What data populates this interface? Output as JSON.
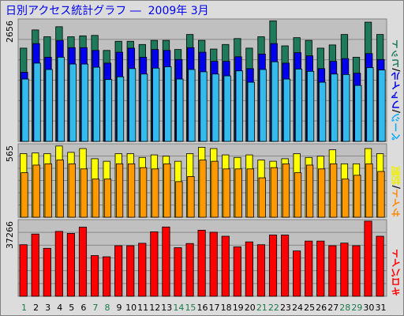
{
  "title": "日別アクセス統計グラフ ―  2009年 3月",
  "chart_data": [
    {
      "type": "bar",
      "panel": "page-file-hit",
      "categories": [
        "1",
        "2",
        "3",
        "4",
        "5",
        "6",
        "7",
        "8",
        "9",
        "10",
        "11",
        "12",
        "13",
        "14",
        "15",
        "16",
        "17",
        "18",
        "19",
        "20",
        "21",
        "22",
        "23",
        "24",
        "25",
        "26",
        "27",
        "28",
        "29",
        "30",
        "31"
      ],
      "ymax_label": "2656",
      "ylim": [
        0,
        2656
      ],
      "grid": true,
      "legend": [
        {
          "text": "ページ",
          "color": "#00aaff"
        },
        {
          "text": "/",
          "color": "#000000"
        },
        {
          "text": "ファイル",
          "color": "#0000ee"
        },
        {
          "text": "/",
          "color": "#000000"
        },
        {
          "text": "ヒット",
          "color": "#1a7a5a"
        }
      ],
      "legend_position": "right",
      "series": [
        {
          "name": "ヒット",
          "color": "#1e7a5a",
          "values": [
            2050,
            2450,
            2300,
            2520,
            2300,
            2320,
            2330,
            2000,
            2200,
            2200,
            2130,
            2220,
            2220,
            2020,
            2350,
            2220,
            2030,
            2130,
            2260,
            2050,
            2300,
            2650,
            2100,
            2280,
            2220,
            2050,
            2120,
            2350,
            1850,
            2620,
            2350
          ]
        },
        {
          "name": "ファイル",
          "color": "#0000ee",
          "values": [
            1520,
            2150,
            1850,
            2220,
            2060,
            2060,
            2000,
            1720,
            1960,
            2050,
            1850,
            2020,
            2000,
            1800,
            2060,
            1960,
            1760,
            1760,
            1860,
            1600,
            1920,
            2150,
            1720,
            1950,
            1880,
            1600,
            1760,
            1820,
            1500,
            1930,
            1800
          ]
        },
        {
          "name": "ページ",
          "color": "#33bbee",
          "values": [
            1370,
            1720,
            1580,
            1850,
            1700,
            1700,
            1630,
            1360,
            1420,
            1600,
            1480,
            1610,
            1640,
            1370,
            1580,
            1530,
            1480,
            1440,
            1550,
            1300,
            1580,
            1750,
            1370,
            1590,
            1540,
            1300,
            1480,
            1470,
            1230,
            1620,
            1570
          ]
        }
      ]
    },
    {
      "type": "bar",
      "panel": "site",
      "categories": [
        "1",
        "2",
        "3",
        "4",
        "5",
        "6",
        "7",
        "8",
        "9",
        "10",
        "11",
        "12",
        "13",
        "14",
        "15",
        "16",
        "17",
        "18",
        "19",
        "20",
        "21",
        "22",
        "23",
        "24",
        "25",
        "26",
        "27",
        "28",
        "29",
        "30",
        "31"
      ],
      "ymax_label": "565",
      "ylim": [
        0,
        565
      ],
      "grid": true,
      "legend": [
        {
          "text": "サイト",
          "color": "#ff8800"
        },
        {
          "text": "/",
          "color": "#000000"
        },
        {
          "text": "訪問",
          "color": "#eeee00"
        }
      ],
      "legend_position": "right",
      "series": [
        {
          "name": "訪問",
          "color": "#ffff00",
          "values": [
            500,
            505,
            500,
            560,
            510,
            540,
            460,
            440,
            500,
            500,
            470,
            490,
            480,
            440,
            500,
            550,
            540,
            490,
            470,
            490,
            450,
            440,
            460,
            500,
            470,
            480,
            530,
            420,
            420,
            540,
            500
          ]
        },
        {
          "name": "サイト",
          "color": "#ff9900",
          "values": [
            350,
            410,
            420,
            450,
            420,
            380,
            300,
            300,
            420,
            420,
            390,
            380,
            420,
            280,
            320,
            450,
            440,
            380,
            380,
            380,
            310,
            390,
            420,
            350,
            410,
            380,
            420,
            300,
            330,
            420,
            360
          ]
        }
      ]
    },
    {
      "type": "bar",
      "panel": "kilobyte",
      "categories": [
        "1",
        "2",
        "3",
        "4",
        "5",
        "6",
        "7",
        "8",
        "9",
        "10",
        "11",
        "12",
        "13",
        "14",
        "15",
        "16",
        "17",
        "18",
        "19",
        "20",
        "21",
        "22",
        "23",
        "24",
        "25",
        "26",
        "27",
        "28",
        "29",
        "30",
        "31"
      ],
      "ymax_label": "37266",
      "ylim": [
        0,
        37266
      ],
      "grid": true,
      "legend": [
        {
          "text": "キロバイト",
          "color": "#ff0000"
        }
      ],
      "legend_position": "right",
      "series": [
        {
          "name": "キロバイト",
          "color": "#ff0000",
          "values": [
            25600,
            30900,
            23800,
            32200,
            31200,
            34300,
            20200,
            19600,
            25100,
            25100,
            26300,
            32000,
            34400,
            24100,
            26200,
            32800,
            31800,
            29800,
            24500,
            27000,
            25600,
            30400,
            30400,
            22500,
            27400,
            27400,
            25100,
            26400,
            25100,
            37300,
            29800
          ]
        }
      ]
    }
  ]
}
